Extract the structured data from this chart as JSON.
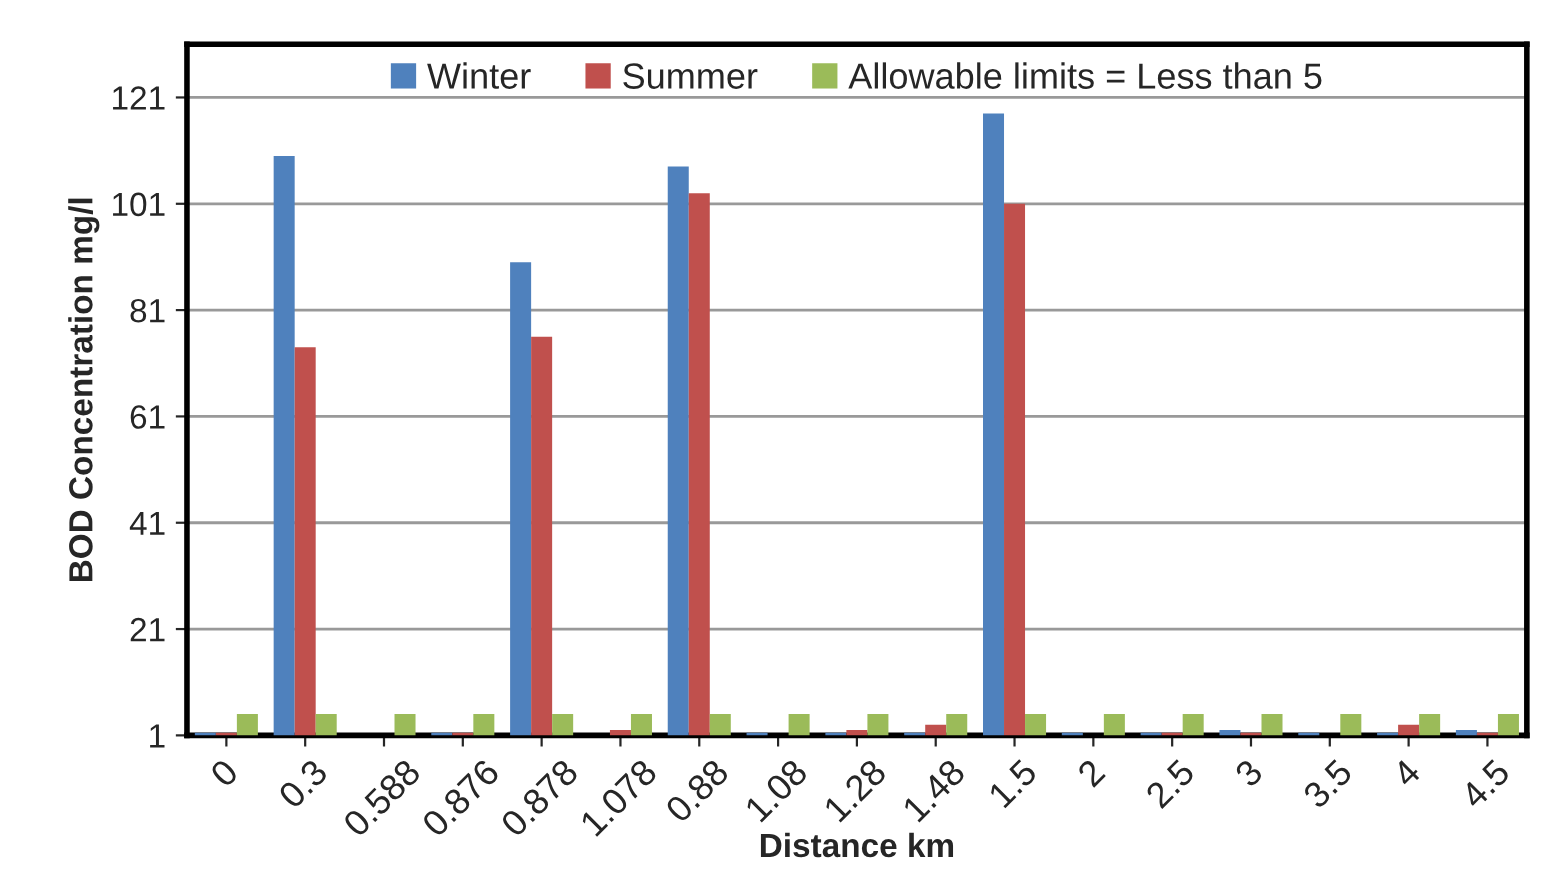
{
  "chart_data": {
    "type": "bar",
    "xlabel": "Distance km",
    "ylabel": "BOD Concentration mg/l",
    "categories": [
      "0",
      "0.3",
      "0.588",
      "0.876",
      "0.878",
      "1.078",
      "0.88",
      "1.08",
      "1.28",
      "1.48",
      "1.5",
      "2",
      "2.5",
      "3",
      "3.5",
      "4",
      "4.5"
    ],
    "series": [
      {
        "name": "Winter",
        "color": "#4f81bd",
        "values": [
          1.5,
          110,
          null,
          1.5,
          90,
          null,
          108,
          1.5,
          1.5,
          1.5,
          118,
          1.5,
          1.5,
          2,
          1.5,
          1.5,
          2
        ]
      },
      {
        "name": "Summer",
        "color": "#c0504d",
        "values": [
          1.5,
          74,
          null,
          1.5,
          76,
          2,
          103,
          null,
          2,
          3,
          101,
          null,
          1.5,
          1.5,
          null,
          3,
          1.5
        ]
      },
      {
        "name": "Allowable limits = Less than 5",
        "color": "#9bbb59",
        "values": [
          5,
          5,
          5,
          5,
          5,
          5,
          5,
          5,
          5,
          5,
          5,
          5,
          5,
          5,
          5,
          5,
          5
        ]
      }
    ],
    "ylim": [
      1,
      131
    ],
    "yticks": [
      1,
      21,
      41,
      61,
      81,
      101,
      121
    ],
    "grid": "y",
    "legend": "top"
  }
}
